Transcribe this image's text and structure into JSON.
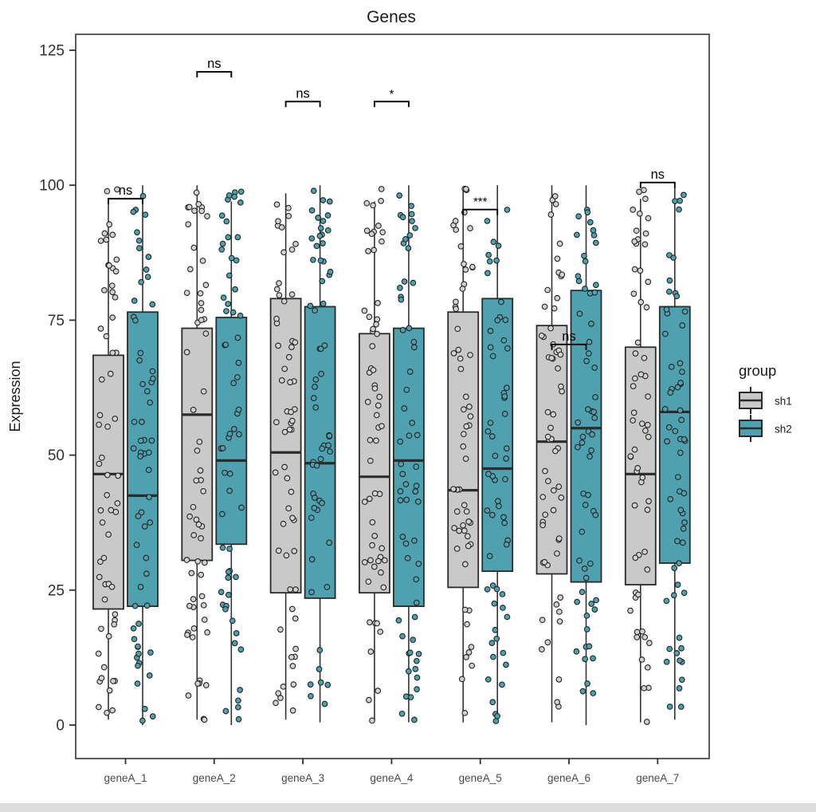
{
  "title": "Genes",
  "y_axis": {
    "label": "Expression",
    "ticks": [
      0,
      25,
      50,
      75,
      100,
      125
    ]
  },
  "legend": {
    "title": "group",
    "items": [
      {
        "label": "sh1",
        "color": "#c9c9c9"
      },
      {
        "label": "sh2",
        "color": "#4fa1b0"
      }
    ]
  },
  "colors": {
    "sh1_fill": "#c9c9c9",
    "sh2_fill": "#4fa1b0",
    "sh1_point_fill": "#d2d2d2",
    "sh2_point_fill": "#4fa1b0",
    "box_border": "#2b2b2b",
    "median": "#2b2b2b",
    "whisker": "#333333",
    "panel_border": "#333333",
    "point_stroke": "#222222",
    "tick_label": "#303030",
    "x_tick_label": "#4a4a4a",
    "bracket": "#000000",
    "title_color": "#1a1a1a"
  },
  "chart_data": {
    "type": "boxplot",
    "title": "Genes",
    "xlabel": "",
    "ylabel": "Expression",
    "ylim": [
      -6,
      128
    ],
    "y_ticks": [
      0,
      25,
      50,
      75,
      100,
      125
    ],
    "grid": false,
    "legend_position": "right",
    "categories": [
      "geneA_1",
      "geneA_2",
      "geneA_3",
      "geneA_4",
      "geneA_5",
      "geneA_6",
      "geneA_7"
    ],
    "groups": [
      "sh1",
      "sh2"
    ],
    "points_per_box": 60,
    "series": [
      {
        "name": "sh1",
        "color": "#c9c9c9",
        "boxes": [
          {
            "category": "geneA_1",
            "whisker_low": 1.0,
            "q1": 21.5,
            "median": 46.5,
            "q3": 68.5,
            "whisker_high": 97.0
          },
          {
            "category": "geneA_2",
            "whisker_low": 1.0,
            "q1": 30.5,
            "median": 57.5,
            "q3": 73.5,
            "whisker_high": 100.0
          },
          {
            "category": "geneA_3",
            "whisker_low": 1.0,
            "q1": 24.5,
            "median": 50.5,
            "q3": 79.0,
            "whisker_high": 98.5
          },
          {
            "category": "geneA_4",
            "whisker_low": 1.0,
            "q1": 24.5,
            "median": 46.0,
            "q3": 72.5,
            "whisker_high": 97.0
          },
          {
            "category": "geneA_5",
            "whisker_low": 0.5,
            "q1": 25.5,
            "median": 43.5,
            "q3": 76.5,
            "whisker_high": 99.0
          },
          {
            "category": "geneA_6",
            "whisker_low": 0.5,
            "q1": 28.0,
            "median": 52.5,
            "q3": 74.0,
            "whisker_high": 100.0
          },
          {
            "category": "geneA_7",
            "whisker_low": 0.5,
            "q1": 26.0,
            "median": 46.5,
            "q3": 70.0,
            "whisker_high": 97.5
          }
        ]
      },
      {
        "name": "sh2",
        "color": "#4fa1b0",
        "boxes": [
          {
            "category": "geneA_1",
            "whisker_low": 0.0,
            "q1": 22.0,
            "median": 42.5,
            "q3": 76.5,
            "whisker_high": 100.0
          },
          {
            "category": "geneA_2",
            "whisker_low": 0.0,
            "q1": 33.5,
            "median": 49.0,
            "q3": 75.5,
            "whisker_high": 97.0
          },
          {
            "category": "geneA_3",
            "whisker_low": 0.5,
            "q1": 23.5,
            "median": 48.5,
            "q3": 77.5,
            "whisker_high": 100.0
          },
          {
            "category": "geneA_4",
            "whisker_low": 0.5,
            "q1": 22.0,
            "median": 49.0,
            "q3": 73.5,
            "whisker_high": 100.0
          },
          {
            "category": "geneA_5",
            "whisker_low": 1.0,
            "q1": 28.5,
            "median": 47.5,
            "q3": 79.0,
            "whisker_high": 100.0
          },
          {
            "category": "geneA_6",
            "whisker_low": 0.0,
            "q1": 26.5,
            "median": 55.0,
            "q3": 80.5,
            "whisker_high": 100.0
          },
          {
            "category": "geneA_7",
            "whisker_low": 1.0,
            "q1": 30.0,
            "median": 58.0,
            "q3": 77.5,
            "whisker_high": 99.5
          }
        ]
      }
    ],
    "significance": [
      {
        "category": "geneA_1",
        "label": "ns",
        "y": 97.5
      },
      {
        "category": "geneA_2",
        "label": "ns",
        "y": 121.0
      },
      {
        "category": "geneA_3",
        "label": "ns",
        "y": 115.5
      },
      {
        "category": "geneA_4",
        "label": "*",
        "y": 115.5
      },
      {
        "category": "geneA_5",
        "label": "***",
        "y": 95.5
      },
      {
        "category": "geneA_6",
        "label": "ns",
        "y": 70.5
      },
      {
        "category": "geneA_7",
        "label": "ns",
        "y": 100.5
      }
    ]
  }
}
